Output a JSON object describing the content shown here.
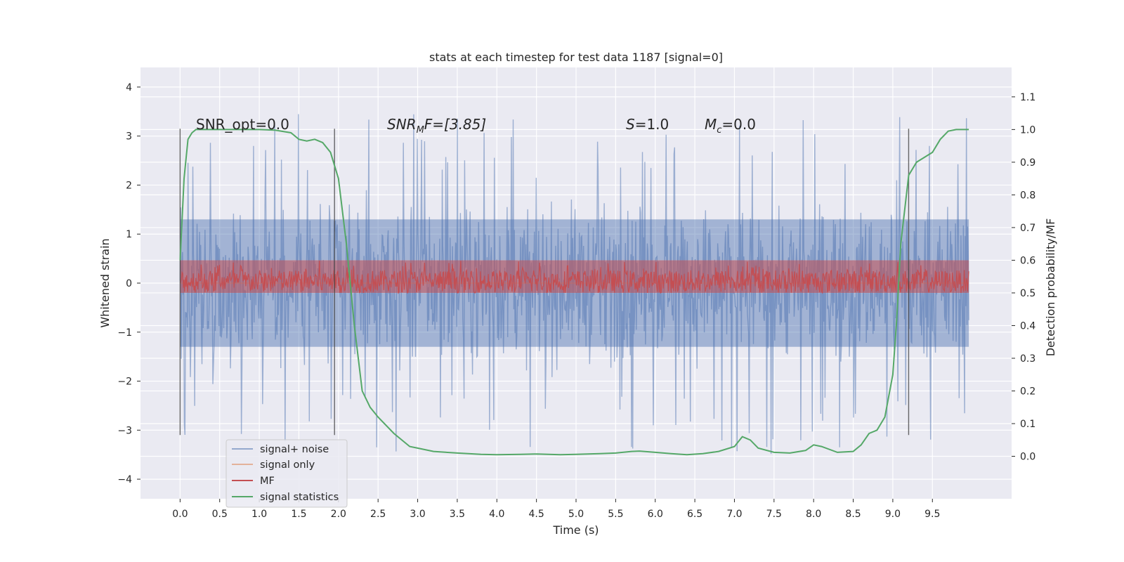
{
  "chart_data": {
    "type": "line",
    "title": "stats at each timestep for test data 1187 [signal=0]",
    "xlabel": "Time (s)",
    "ylabel_left": "Whitened strain",
    "ylabel_right": "Detection probability/MF",
    "xlim": [
      -0.5,
      10.5
    ],
    "ylim_left": [
      -4.4,
      4.4
    ],
    "ylim_right": [
      -0.13,
      1.19
    ],
    "x_ticks": [
      "0.0",
      "0.5",
      "1.0",
      "1.5",
      "2.0",
      "2.5",
      "3.0",
      "3.5",
      "4.0",
      "4.5",
      "5.0",
      "5.5",
      "6.0",
      "6.5",
      "7.0",
      "7.5",
      "8.0",
      "8.5",
      "9.0",
      "9.5"
    ],
    "y_ticks_left": [
      "4",
      "3",
      "2",
      "1",
      "0",
      "−1",
      "−2",
      "−3",
      "−4"
    ],
    "y_ticks_right": [
      "1.1",
      "1.0",
      "0.9",
      "0.8",
      "0.7",
      "0.6",
      "0.5",
      "0.4",
      "0.3",
      "0.2",
      "0.1",
      "0.0"
    ],
    "grid": true,
    "background": "#eaeaf2",
    "legend_position": "lower-left",
    "annotations": {
      "snr_opt": "SNR_opt=0.0",
      "snr_mf_base": "SNR",
      "snr_mf_sub": "M",
      "snr_mf_rest": "F=[3.85]",
      "s_label": "S",
      "s_value": "=1.0",
      "mc_base": "M",
      "mc_sub": "c",
      "mc_value": "=0.0"
    },
    "vertical_lines_x": [
      0.0,
      1.95,
      9.2
    ],
    "series": [
      {
        "name": "signal+ noise",
        "color": "#4c72b0",
        "axis": "left",
        "x_range": [
          0.0,
          9.96
        ],
        "amplitude_envelope": [
          -3.5,
          3.6
        ],
        "dense_band": [
          -1.3,
          1.3
        ]
      },
      {
        "name": "signal only",
        "color": "#dd8452",
        "axis": "left",
        "values_constant": 0.0
      },
      {
        "name": "MF",
        "color": "#c44e52",
        "axis": "right",
        "x_range": [
          0.0,
          9.96
        ],
        "band": [
          0.5,
          0.6
        ]
      },
      {
        "name": "signal statistics",
        "color": "#55a868",
        "axis": "right",
        "x": [
          0.0,
          0.05,
          0.1,
          0.15,
          0.2,
          0.3,
          0.5,
          0.8,
          1.0,
          1.2,
          1.4,
          1.5,
          1.6,
          1.7,
          1.8,
          1.9,
          2.0,
          2.1,
          2.2,
          2.3,
          2.4,
          2.5,
          2.7,
          2.9,
          3.0,
          3.2,
          3.5,
          3.8,
          4.0,
          4.3,
          4.5,
          4.8,
          5.0,
          5.3,
          5.5,
          5.7,
          5.8,
          6.0,
          6.2,
          6.4,
          6.6,
          6.8,
          7.0,
          7.1,
          7.2,
          7.3,
          7.5,
          7.7,
          7.9,
          8.0,
          8.1,
          8.3,
          8.5,
          8.6,
          8.7,
          8.8,
          8.9,
          9.0,
          9.05,
          9.1,
          9.2,
          9.3,
          9.4,
          9.5,
          9.6,
          9.7,
          9.8,
          9.9,
          9.96
        ],
        "values": [
          0.6,
          0.85,
          0.97,
          0.99,
          1.0,
          1.0,
          1.0,
          1.0,
          1.0,
          0.998,
          0.99,
          0.97,
          0.965,
          0.97,
          0.96,
          0.93,
          0.85,
          0.65,
          0.4,
          0.2,
          0.15,
          0.12,
          0.07,
          0.03,
          0.025,
          0.015,
          0.01,
          0.006,
          0.005,
          0.006,
          0.007,
          0.005,
          0.006,
          0.008,
          0.01,
          0.015,
          0.016,
          0.012,
          0.008,
          0.005,
          0.008,
          0.015,
          0.03,
          0.06,
          0.05,
          0.025,
          0.012,
          0.01,
          0.018,
          0.035,
          0.03,
          0.012,
          0.015,
          0.035,
          0.07,
          0.08,
          0.12,
          0.25,
          0.42,
          0.65,
          0.86,
          0.9,
          0.915,
          0.93,
          0.97,
          0.995,
          1.0,
          1.0,
          1.0
        ]
      }
    ]
  }
}
